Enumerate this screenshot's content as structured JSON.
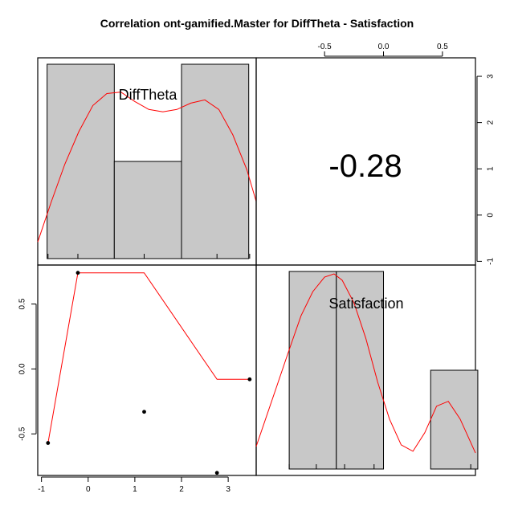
{
  "title": "Correlation ont-gamified.Master for DiffTheta - Satisfaction",
  "chart_data": {
    "type": "scatter-matrix",
    "title": "Correlation ont-gamified.Master for DiffTheta - Satisfaction",
    "variables": [
      "DiffTheta",
      "Satisfaction"
    ],
    "correlation": "-0.28",
    "colors": {
      "bar_fill": "#c8c8c8",
      "density": "#ff0000",
      "point": "#000000",
      "frame": "#000000"
    },
    "axes": {
      "bottom": {
        "range": [
          -1.08,
          3.6
        ],
        "ticks": [
          -1,
          0,
          1,
          2,
          3
        ],
        "labels": [
          "-1",
          "0",
          "1",
          "2",
          "3"
        ]
      },
      "top": {
        "range": [
          -1.08,
          0.78
        ],
        "ticks": [
          -0.5,
          0.0,
          0.5
        ],
        "labels": [
          "-0.5",
          "0.0",
          "0.5"
        ]
      },
      "left": {
        "range": [
          -0.82,
          0.8
        ],
        "ticks": [
          -0.5,
          0.0,
          0.5
        ],
        "labels": [
          "-0.5",
          "0.0",
          "0.5"
        ]
      },
      "right": {
        "range": [
          -1.08,
          3.4
        ],
        "ticks": [
          -1,
          0,
          1,
          2,
          3
        ],
        "labels": [
          "-1",
          "0",
          "1",
          "2",
          "3"
        ]
      }
    },
    "scatter": {
      "x": [
        -0.86,
        -0.22,
        1.2,
        2.76,
        3.46
      ],
      "y": [
        -0.57,
        0.74,
        -0.33,
        -0.8,
        -0.08
      ]
    },
    "smooth": {
      "x": [
        -0.86,
        -0.22,
        1.2,
        2.76,
        3.46
      ],
      "y": [
        -0.57,
        0.74,
        0.74,
        -0.08,
        -0.08
      ]
    },
    "hist_difftheta": {
      "breaks": [
        -0.88,
        0.56,
        2.0,
        3.44
      ],
      "heights": [
        2.0,
        1.0,
        2.0
      ],
      "density_x": [
        -1.08,
        -0.8,
        -0.5,
        -0.2,
        0.1,
        0.4,
        0.7,
        1.0,
        1.3,
        1.6,
        1.9,
        2.2,
        2.5,
        2.8,
        3.1,
        3.4,
        3.6
      ],
      "density_y": [
        0.21,
        0.7,
        1.19,
        1.6,
        1.93,
        2.08,
        2.1,
        1.98,
        1.88,
        1.85,
        1.88,
        1.96,
        2.0,
        1.88,
        1.56,
        1.12,
        0.72
      ]
    },
    "hist_satisfaction": {
      "breaks": [
        -0.8,
        -0.4,
        0.0,
        0.4,
        0.8
      ],
      "heights": [
        2.0,
        2.0,
        0.0,
        1.0
      ],
      "density_x": [
        -1.08,
        -0.9,
        -0.8,
        -0.7,
        -0.6,
        -0.5,
        -0.42,
        -0.35,
        -0.25,
        -0.15,
        -0.05,
        0.05,
        0.15,
        0.25,
        0.35,
        0.45,
        0.55,
        0.65,
        0.78
      ],
      "density_y": [
        0.28,
        1.05,
        1.48,
        1.9,
        2.2,
        2.38,
        2.42,
        2.34,
        2.06,
        1.62,
        1.08,
        0.62,
        0.3,
        0.22,
        0.45,
        0.78,
        0.84,
        0.62,
        0.2
      ]
    },
    "grid": false,
    "legend": "none"
  }
}
